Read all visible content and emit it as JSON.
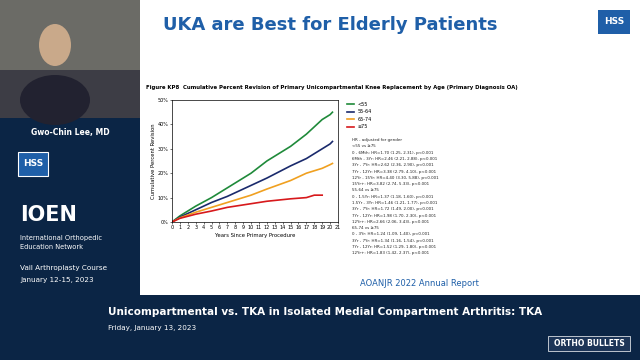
{
  "slide": {
    "title": "UKA are Best for Elderly Patients",
    "logo": "HSS",
    "source": "AOANJR 2022 Annual Report"
  },
  "sidebar": {
    "speaker": "Gwo-Chin Lee, MD",
    "logo": "HSS",
    "network": "IOEN",
    "network_name": [
      "International Orthopedic",
      "Education Network"
    ],
    "course": "Vail Arthroplasty Course",
    "dates": "January 12-15, 2023"
  },
  "banner": {
    "title": "Unicompartmental vs. TKA in Isolated Medial Compartment Arthritis: TKA",
    "date": "Friday, January 13, 2023",
    "brand": "ORTHO BULLETS"
  },
  "chart_data": {
    "type": "line",
    "title": "Figure KP8  Cumulative Percent Revision of Primary Unicompartmental Knee Replacement by Age (Primary Diagnosis OA)",
    "x_label": "Years Since Primary Procedure",
    "y_label": "Cumulative Percent Revision",
    "xlim": [
      0,
      21
    ],
    "xticks": [
      0,
      1,
      2,
      3,
      4,
      5,
      6,
      7,
      8,
      9,
      10,
      11,
      12,
      13,
      14,
      15,
      16,
      17,
      18,
      19,
      20,
      21
    ],
    "ylim": [
      0,
      50
    ],
    "yticks": [
      {
        "value": 0,
        "label": "0%"
      },
      {
        "value": 10,
        "label": "10%"
      },
      {
        "value": 20,
        "label": "20%"
      },
      {
        "value": 30,
        "label": "30%"
      },
      {
        "value": 40,
        "label": "40%"
      },
      {
        "value": 50,
        "label": "50%"
      }
    ],
    "legend": "upper left",
    "series": [
      {
        "name": "<55",
        "color": "#1f8a3a",
        "x": [
          0,
          1,
          2,
          3,
          5,
          7,
          10,
          12,
          15,
          17,
          19,
          20,
          20.3
        ],
        "values": [
          0,
          2.5,
          4.5,
          6.5,
          10,
          14,
          20,
          25,
          31,
          36,
          42,
          44,
          45
        ]
      },
      {
        "name": "55-64",
        "color": "#1a2a6c",
        "x": [
          0,
          1,
          3,
          5,
          7,
          10,
          12,
          15,
          17,
          19,
          20,
          20.3
        ],
        "values": [
          0,
          2,
          5,
          8,
          10.5,
          15,
          18,
          23,
          26,
          30,
          32,
          33
        ]
      },
      {
        "name": "65-74",
        "color": "#f0a020",
        "x": [
          0,
          1,
          3,
          5,
          7,
          10,
          12,
          15,
          17,
          19,
          20,
          20.3
        ],
        "values": [
          0,
          1.7,
          4,
          6,
          8,
          11,
          13.5,
          17,
          20,
          22,
          23.5,
          24
        ]
      },
      {
        "name": "≥75",
        "color": "#d7191c",
        "x": [
          0,
          1,
          3,
          5,
          7,
          10,
          12,
          15,
          17,
          18,
          19
        ],
        "values": [
          0,
          1.5,
          3.2,
          4.5,
          6,
          7.5,
          8.5,
          9.5,
          10,
          11,
          11
        ]
      }
    ],
    "annotations": [
      "HR - adjusted for gender",
      "<55 vs ≥75",
      "0 - 6Mth: HR=1.70 (1.25, 2.31), p<0.001",
      "6Mth - 3Yr: HR=2.46 (2.21, 2.88), p<0.001",
      "3Yr - 7Yr: HR=2.62 (2.36, 2.90), p<0.001",
      "7Yr - 12Yr: HR=3.38 (2.79, 4.10), p<0.001",
      "12Yr - 15Yr: HR=4.40 (3.30, 5.88), p<0.001",
      "15Yr+: HR=3.82 (2.74, 5.33), p<0.001",
      "55-64 vs ≥75",
      "0 - 1.5Yr: HR=1.37 (1.18, 1.60), p<0.001",
      "1.5Yr - 3Yr: HR=1.46 (1.21, 1.77), p<0.001",
      "3Yr - 7Yr: HR=1.72 (1.49, 2.00), p<0.001",
      "7Yr - 12Yr: HR=1.98 (1.70, 2.30), p<0.001",
      "12Yr+: HR=2.66 (2.06, 3.43), p<0.001",
      "65-74 vs ≥75",
      "0 - 3Yr: HR=1.24 (1.09, 1.40), p<0.001",
      "3Yr - 7Yr: HR=1.34 (1.16, 1.54), p<0.001",
      "7Yr - 12Yr: HR=1.52 (1.29, 1.80), p<0.001",
      "12Yr+: HR=1.83 (1.42, 2.37), p<0.001"
    ]
  }
}
